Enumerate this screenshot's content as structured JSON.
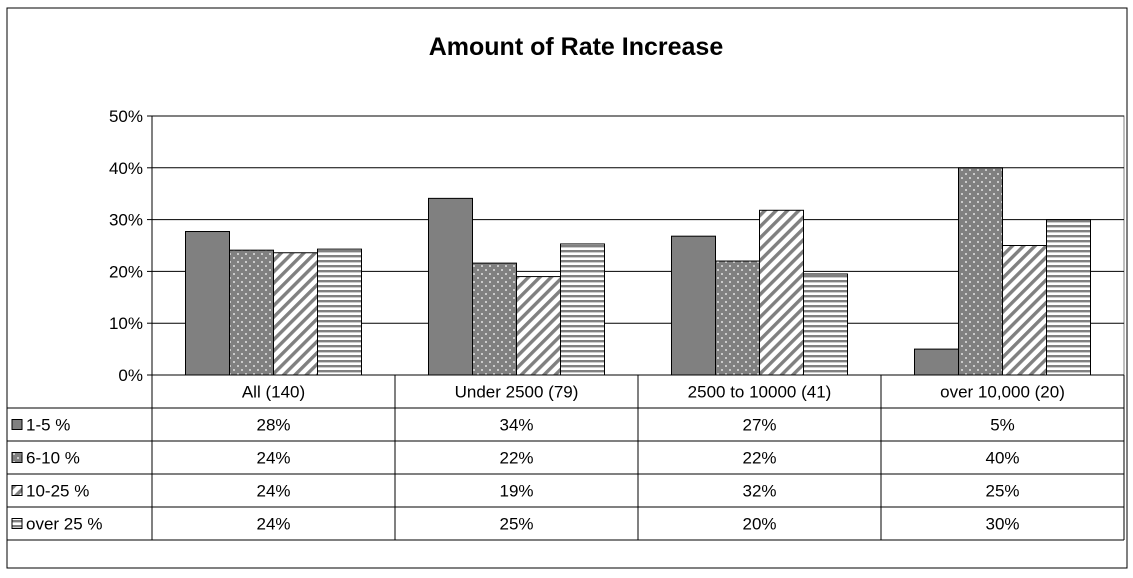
{
  "chart_data": {
    "type": "bar",
    "title": "Amount of Rate Increase",
    "categories": [
      "All (140)",
      "Under 2500 (79)",
      "2500 to 10000 (41)",
      "over 10,000 (20)"
    ],
    "series": [
      {
        "name": "1-5 %",
        "values": [
          27.7,
          34.1,
          26.8,
          5.0
        ],
        "labels": [
          "28%",
          "34%",
          "27%",
          "5%"
        ],
        "pattern": "solid"
      },
      {
        "name": "6-10 %",
        "values": [
          24.1,
          21.6,
          22.0,
          40.0
        ],
        "labels": [
          "24%",
          "22%",
          "22%",
          "40%"
        ],
        "pattern": "dots"
      },
      {
        "name": "10-25 %",
        "values": [
          23.6,
          19.0,
          31.8,
          25.0
        ],
        "labels": [
          "24%",
          "19%",
          "32%",
          "25%"
        ],
        "pattern": "diagonal"
      },
      {
        "name": "over 25 %",
        "values": [
          24.3,
          25.3,
          19.5,
          30.0
        ],
        "labels": [
          "24%",
          "25%",
          "20%",
          "30%"
        ],
        "pattern": "horizontal"
      }
    ],
    "ylim": [
      0,
      50
    ],
    "yticks": [
      "0%",
      "10%",
      "20%",
      "30%",
      "40%",
      "50%"
    ],
    "grid": true,
    "legend": "data-table",
    "colors": {
      "bar_fill": "#808080",
      "pattern_fill": "#ffffff",
      "outline": "#000000",
      "gridline": "#000000"
    }
  }
}
